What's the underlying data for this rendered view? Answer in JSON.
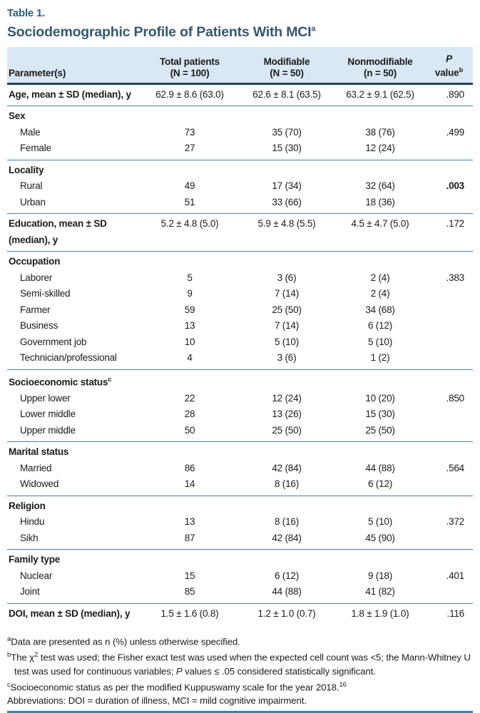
{
  "accent_colors": {
    "label_teal": "#2d607f",
    "title_navy": "#35586e",
    "header_background": "#d9e8f4",
    "header_underline": "#1e4259",
    "rule_steel_blue": "#4e7fa0"
  },
  "table": {
    "label": "Table 1.",
    "title": "Sociodemographic Profile of Patients With MCI",
    "title_sup": "a",
    "columns": [
      {
        "label": "Parameter(s)"
      },
      {
        "line1": "Total patients",
        "line2": "(N = 100)"
      },
      {
        "line1": "Modifiable",
        "line2": "(N = 50)"
      },
      {
        "line1": "Nonmodifiable",
        "line2": "(n = 50)"
      },
      {
        "line1": "P",
        "line2": "value",
        "sup": "b"
      }
    ],
    "sections": [
      {
        "rows": [
          {
            "type": "data",
            "param": "Age, mean ± SD (median), y",
            "values": [
              "62.9 ± 8.6 (63.0)",
              "62.6 ± 8.1 (63.5)",
              "63.2 ± 9.1 (62.5)"
            ],
            "p": ".890"
          }
        ]
      },
      {
        "rows": [
          {
            "type": "group",
            "param": "Sex"
          },
          {
            "type": "sub",
            "param": "Male",
            "values": [
              "73",
              "35 (70)",
              "38 (76)"
            ],
            "p": ".499"
          },
          {
            "type": "sub",
            "param": "Female",
            "values": [
              "27",
              "15 (30)",
              "12 (24)"
            ],
            "p": ""
          }
        ]
      },
      {
        "rows": [
          {
            "type": "group",
            "param": "Locality"
          },
          {
            "type": "sub",
            "param": "Rural",
            "values": [
              "49",
              "17 (34)",
              "32 (64)"
            ],
            "p": ".003",
            "p_bold": true
          },
          {
            "type": "sub",
            "param": "Urban",
            "values": [
              "51",
              "33 (66)",
              "18 (36)"
            ],
            "p": ""
          }
        ]
      },
      {
        "rows": [
          {
            "type": "data",
            "param": "Education, mean ± SD",
            "param2": "(median), y",
            "values": [
              "5.2 ± 4.8 (5.0)",
              "5.9 ± 4.8 (5.5)",
              "4.5 ± 4.7 (5.0)"
            ],
            "p": ".172"
          }
        ]
      },
      {
        "rows": [
          {
            "type": "group",
            "param": "Occupation"
          },
          {
            "type": "sub",
            "param": "Laborer",
            "values": [
              "5",
              "3 (6)",
              "2 (4)"
            ],
            "p": ".383"
          },
          {
            "type": "sub",
            "param": "Semi-skilled",
            "values": [
              "9",
              "7 (14)",
              "2 (4)"
            ],
            "p": ""
          },
          {
            "type": "sub",
            "param": "Farmer",
            "values": [
              "59",
              "25 (50)",
              "34 (68)"
            ],
            "p": ""
          },
          {
            "type": "sub",
            "param": "Business",
            "values": [
              "13",
              "7 (14)",
              "6 (12)"
            ],
            "p": ""
          },
          {
            "type": "sub",
            "param": "Government job",
            "values": [
              "10",
              "5 (10)",
              "5 (10)"
            ],
            "p": ""
          },
          {
            "type": "sub",
            "param": "Technician/professional",
            "values": [
              "4",
              "3 (6)",
              "1 (2)"
            ],
            "p": ""
          }
        ]
      },
      {
        "rows": [
          {
            "type": "group",
            "param": "Socioeconomic status",
            "param_sup": "c"
          },
          {
            "type": "sub",
            "param": "Upper lower",
            "values": [
              "22",
              "12 (24)",
              "10 (20)"
            ],
            "p": ".850"
          },
          {
            "type": "sub",
            "param": "Lower middle",
            "values": [
              "28",
              "13 (26)",
              "15 (30)"
            ],
            "p": ""
          },
          {
            "type": "sub",
            "param": "Upper middle",
            "values": [
              "50",
              "25 (50)",
              "25 (50)"
            ],
            "p": ""
          }
        ]
      },
      {
        "rows": [
          {
            "type": "group",
            "param": "Marital status"
          },
          {
            "type": "sub",
            "param": "Married",
            "values": [
              "86",
              "42 (84)",
              "44 (88)"
            ],
            "p": ".564"
          },
          {
            "type": "sub",
            "param": "Widowed",
            "values": [
              "14",
              "8 (16)",
              "6 (12)"
            ],
            "p": ""
          }
        ]
      },
      {
        "rows": [
          {
            "type": "group",
            "param": "Religion"
          },
          {
            "type": "sub",
            "param": "Hindu",
            "values": [
              "13",
              "8 (16)",
              "5 (10)"
            ],
            "p": ".372"
          },
          {
            "type": "sub",
            "param": "Sikh",
            "values": [
              "87",
              "42 (84)",
              "45 (90)"
            ],
            "p": ""
          }
        ]
      },
      {
        "rows": [
          {
            "type": "group",
            "param": "Family type"
          },
          {
            "type": "sub",
            "param": "Nuclear",
            "values": [
              "15",
              "6 (12)",
              "9 (18)"
            ],
            "p": ".401"
          },
          {
            "type": "sub",
            "param": "Joint",
            "values": [
              "85",
              "44 (88)",
              "41 (82)"
            ],
            "p": ""
          }
        ]
      },
      {
        "rows": [
          {
            "type": "data",
            "param": "DOI, mean ± SD (median), y",
            "values": [
              "1.5 ± 1.6 (0.8)",
              "1.2 ± 1.0 (0.7)",
              "1.8 ± 1.9 (1.0)"
            ],
            "p": ".116"
          }
        ]
      }
    ],
    "footnotes": [
      {
        "sup": "a",
        "segments": [
          {
            "t": "Data are presented as n (%) unless otherwise specified."
          }
        ]
      },
      {
        "sup": "b",
        "segments": [
          {
            "t": "The χ"
          },
          {
            "t": "2",
            "style": "sup"
          },
          {
            "t": " test was used; the Fisher exact test was used when the expected cell count was <5; the Mann-Whitney U test was used for continuous variables; "
          },
          {
            "t": "P",
            "style": "italic"
          },
          {
            "t": " values ≤ .05 considered statistically significant."
          }
        ]
      },
      {
        "sup": "c",
        "segments": [
          {
            "t": "Socioeconomic status as per the modified Kuppuswamy scale for the year 2018."
          },
          {
            "t": "16",
            "style": "sup"
          }
        ]
      },
      {
        "sup": "",
        "segments": [
          {
            "t": "Abbreviations: DOI = duration of illness, MCI = mild cognitive impairment."
          }
        ]
      }
    ]
  }
}
